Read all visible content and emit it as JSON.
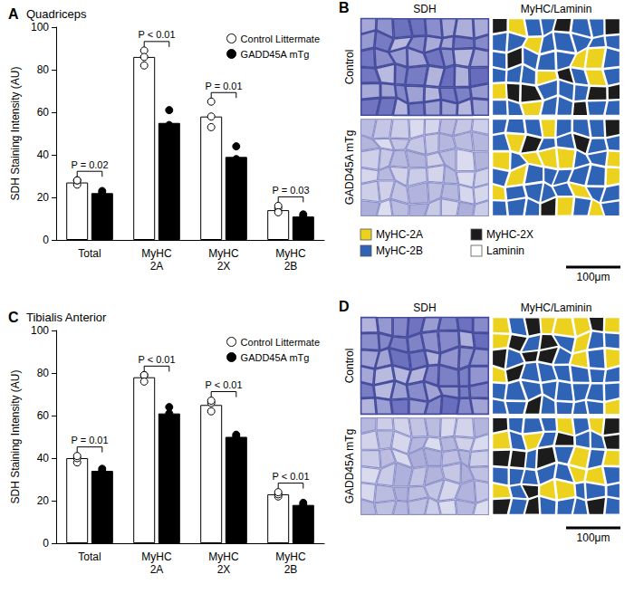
{
  "chart_data": [
    {
      "type": "bar",
      "panel_label": "A",
      "title": "Quadriceps",
      "y_label": "SDH Staining Intensity (AU)",
      "categories": [
        "Total",
        "MyHC 2A",
        "MyHC 2X",
        "MyHC 2B"
      ],
      "series": [
        {
          "name": "Control Littermate",
          "color": "#ffffff",
          "marker": "circle",
          "values": [
            27,
            86,
            58,
            14
          ],
          "points": [
            [
              26,
              28,
              28
            ],
            [
              89,
              86,
              82
            ],
            [
              65,
              58,
              53
            ],
            [
              15,
              16,
              13
            ]
          ]
        },
        {
          "name": "GADD45A mTg",
          "color": "#000000",
          "marker": "circle",
          "values": [
            22,
            55,
            39,
            11
          ],
          "points": [
            [
              21,
              22,
              23
            ],
            [
              61,
              54,
              52
            ],
            [
              44,
              38,
              36
            ],
            [
              12,
              10,
              11
            ]
          ]
        }
      ],
      "ylim": [
        0,
        100
      ],
      "yticks": [
        0,
        20,
        40,
        60,
        80,
        100
      ],
      "grid": false,
      "legend": "upper right",
      "annotations": [
        {
          "category": "Total",
          "text": "P = 0.02"
        },
        {
          "category": "MyHC 2A",
          "text": "P < 0.01"
        },
        {
          "category": "MyHC 2X",
          "text": "P = 0.01"
        },
        {
          "category": "MyHC 2B",
          "text": "P = 0.03"
        }
      ]
    },
    {
      "type": "bar",
      "panel_label": "C",
      "title": "Tibialis Anterior",
      "y_label": "SDH Staining Intensity (AU)",
      "categories": [
        "Total",
        "MyHC 2A",
        "MyHC 2X",
        "MyHC 2B"
      ],
      "series": [
        {
          "name": "Control Littermate",
          "color": "#ffffff",
          "marker": "circle",
          "values": [
            40,
            78,
            65,
            23
          ],
          "points": [
            [
              38,
              40,
              41
            ],
            [
              79,
              79,
              76
            ],
            [
              62,
              66,
              67
            ],
            [
              22,
              23,
              24
            ]
          ]
        },
        {
          "name": "GADD45A mTg",
          "color": "#000000",
          "marker": "circle",
          "values": [
            34,
            61,
            50,
            18
          ],
          "points": [
            [
              33,
              34,
              35
            ],
            [
              64,
              61,
              58
            ],
            [
              51,
              49,
              50
            ],
            [
              19,
              17,
              18
            ]
          ]
        }
      ],
      "ylim": [
        0,
        100
      ],
      "yticks": [
        0,
        20,
        40,
        60,
        80,
        100
      ],
      "grid": false,
      "legend": "upper right",
      "annotations": [
        {
          "category": "Total",
          "text": "P = 0.01"
        },
        {
          "category": "MyHC 2A",
          "text": "P < 0.01"
        },
        {
          "category": "MyHC 2X",
          "text": "P < 0.01"
        },
        {
          "category": "MyHC 2B",
          "text": "P < 0.01"
        }
      ]
    }
  ],
  "image_panels": [
    {
      "panel_label": "B",
      "columns": [
        "SDH",
        "MyHC/Laminin"
      ],
      "rows": [
        "Control",
        "GADD45A mTg"
      ],
      "scale_bar": "100μm"
    },
    {
      "panel_label": "D",
      "columns": [
        "SDH",
        "MyHC/Laminin"
      ],
      "rows": [
        "Control",
        "GADD45A mTg"
      ],
      "scale_bar": "100μm"
    }
  ],
  "image_legend": [
    {
      "label": "MyHC-2A",
      "color": "#ecd21e"
    },
    {
      "label": "MyHC-2X",
      "color": "#1c1c1c"
    },
    {
      "label": "MyHC-2B",
      "color": "#2f63b5"
    },
    {
      "label": "Laminin",
      "color": "#ffffff"
    }
  ]
}
